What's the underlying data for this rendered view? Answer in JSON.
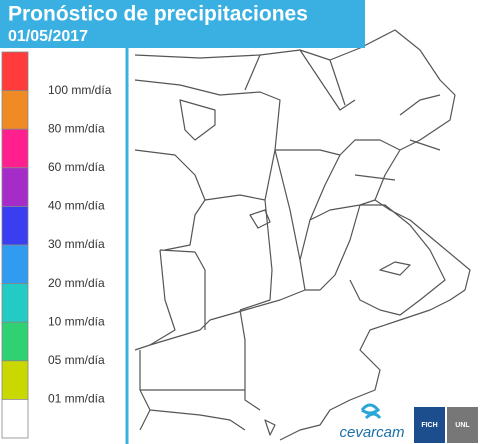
{
  "header": {
    "title": "Pronóstico de precipitaciones",
    "date": "01/05/2017"
  },
  "legend": {
    "items": [
      {
        "color": "#ff3b3b",
        "label": "100 mm/día"
      },
      {
        "color": "#f08a24",
        "label": "80 mm/día"
      },
      {
        "color": "#ff1f8f",
        "label": "60 mm/día"
      },
      {
        "color": "#a52cc8",
        "label": "40 mm/día"
      },
      {
        "color": "#3a3ef0",
        "label": "30 mm/día"
      },
      {
        "color": "#2f9cf2",
        "label": "20 mm/día"
      },
      {
        "color": "#22cbc4",
        "label": "10 mm/día"
      },
      {
        "color": "#2fd173",
        "label": "05 mm/día"
      },
      {
        "color": "#c9d800",
        "label": "01 mm/día"
      },
      {
        "color": "#ffffff"
      }
    ]
  },
  "logos": {
    "brand": "cevarcam",
    "fich": "FICH",
    "unl": "UNL"
  }
}
